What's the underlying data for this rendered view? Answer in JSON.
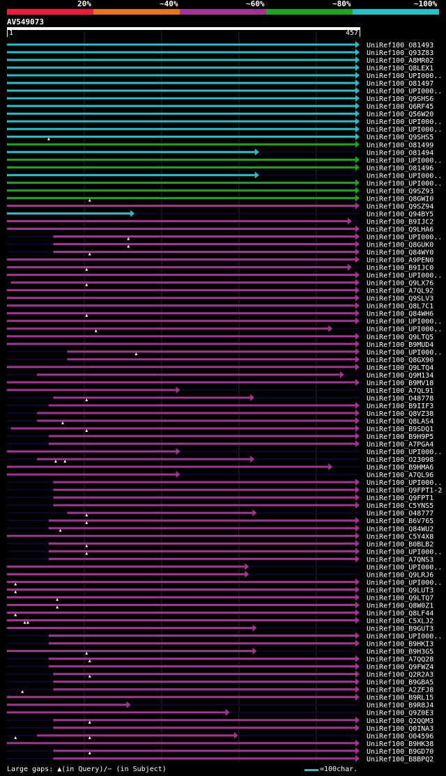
{
  "query": {
    "name": "AV549073",
    "start": "1",
    "end": "457",
    "length": 457
  },
  "legend": {
    "labels": [
      "20%",
      "~40%",
      "~60%",
      "~80%",
      "~100%"
    ],
    "colors": [
      "#ee1c3a",
      "#e8741e",
      "#a53294",
      "#1ea51e",
      "#22c2c8"
    ]
  },
  "footer": {
    "gaps_label": "Large gaps: ▲(in Query)/− (in Subject)",
    "scale_label": "=100char."
  },
  "colors": {
    "line": "#0a0a30",
    "gap": "#050520",
    "tri": "#fffde0"
  },
  "hits": [
    {
      "name": "UniRef100_O81493",
      "s": 1,
      "e": 457,
      "c": 4
    },
    {
      "name": "UniRef100_Q93Z83",
      "s": 1,
      "e": 457,
      "c": 4
    },
    {
      "name": "UniRef100_A8MR02",
      "s": 1,
      "e": 457,
      "c": 4
    },
    {
      "name": "UniRef100_Q8LEX1",
      "s": 1,
      "e": 457,
      "c": 4
    },
    {
      "name": "UniRef100_UPI000..",
      "s": 1,
      "e": 457,
      "c": 4
    },
    {
      "name": "UniRef100_O81497",
      "s": 1,
      "e": 457,
      "c": 4
    },
    {
      "name": "UniRef100_UPI000..",
      "s": 1,
      "e": 457,
      "c": 4
    },
    {
      "name": "UniRef100_Q9SHS6",
      "s": 1,
      "e": 457,
      "c": 4
    },
    {
      "name": "UniRef100_Q6RF45",
      "s": 1,
      "e": 457,
      "c": 4
    },
    {
      "name": "UniRef100_Q56W20",
      "s": 1,
      "e": 457,
      "c": 4
    },
    {
      "name": "UniRef100_UPI000..",
      "s": 1,
      "e": 457,
      "c": 4
    },
    {
      "name": "UniRef100_UPI000..",
      "s": 1,
      "e": 457,
      "c": 4
    },
    {
      "name": "UniRef100_Q9SHS5",
      "s": 1,
      "e": 457,
      "c": 4
    },
    {
      "name": "UniRef100_O81499",
      "s": 1,
      "e": 457,
      "c": 3,
      "tri": [
        55
      ]
    },
    {
      "name": "UniRef100_O81494",
      "s": 1,
      "e": 327,
      "c": 4
    },
    {
      "name": "UniRef100_UPI000..",
      "s": 1,
      "e": 457,
      "c": 3
    },
    {
      "name": "UniRef100_O81496",
      "s": 1,
      "e": 457,
      "c": 3
    },
    {
      "name": "UniRef100_UPI000..",
      "s": 1,
      "e": 327,
      "c": 4
    },
    {
      "name": "UniRef100_UPI000..",
      "s": 1,
      "e": 457,
      "c": 3
    },
    {
      "name": "UniRef100_Q9SZ93",
      "s": 1,
      "e": 457,
      "c": 3
    },
    {
      "name": "UniRef100_Q8GWI0",
      "s": 1,
      "e": 457,
      "c": 3
    },
    {
      "name": "UniRef100_Q9SZ94",
      "s": 1,
      "e": 457,
      "c": 2,
      "tri": [
        108
      ]
    },
    {
      "name": "UniRef100_Q94BY5",
      "s": 1,
      "e": 166,
      "c": 4
    },
    {
      "name": "UniRef100_B9IJC2",
      "s": 1,
      "e": 447,
      "c": 2
    },
    {
      "name": "UniRef100_Q9LHA6",
      "s": 1,
      "e": 457,
      "c": 2
    },
    {
      "name": "UniRef100_UPI000..",
      "s": 61,
      "e": 457,
      "c": 2
    },
    {
      "name": "UniRef100_Q8GUK0",
      "s": 61,
      "e": 457,
      "c": 2,
      "tri": [
        158
      ]
    },
    {
      "name": "UniRef100_Q84WY0",
      "s": 61,
      "e": 457,
      "c": 2,
      "tri": [
        158
      ]
    },
    {
      "name": "UniRef100_A9PEN0",
      "s": 1,
      "e": 457,
      "c": 2,
      "tri": [
        108
      ]
    },
    {
      "name": "UniRef100_B9IJC0",
      "s": 1,
      "e": 447,
      "c": 2
    },
    {
      "name": "UniRef100_UPI000..",
      "s": 1,
      "e": 457,
      "c": 2,
      "tri": [
        104
      ]
    },
    {
      "name": "UniRef100_Q9LX76",
      "s": 6,
      "e": 457,
      "c": 2
    },
    {
      "name": "UniRef100_A7QL92",
      "s": 1,
      "e": 457,
      "c": 2,
      "tri": [
        104
      ]
    },
    {
      "name": "UniRef100_Q9SLV3",
      "s": 1,
      "e": 457,
      "c": 2
    },
    {
      "name": "UniRef100_Q8L7C1",
      "s": 1,
      "e": 457,
      "c": 2
    },
    {
      "name": "UniRef100_Q84WH6",
      "s": 1,
      "e": 457,
      "c": 2
    },
    {
      "name": "UniRef100_UPI000..",
      "s": 1,
      "e": 457,
      "c": 2,
      "tri": [
        104
      ]
    },
    {
      "name": "UniRef100_UPI000..",
      "s": 1,
      "e": 422,
      "c": 2
    },
    {
      "name": "UniRef100_Q9LTQ5",
      "s": 1,
      "e": 457,
      "c": 2,
      "tri": [
        116
      ]
    },
    {
      "name": "UniRef100_B9MUD4",
      "s": 1,
      "e": 457,
      "c": 2
    },
    {
      "name": "UniRef100_UPI000..",
      "s": 79,
      "e": 457,
      "c": 2
    },
    {
      "name": "UniRef100_Q8GX90",
      "s": 79,
      "e": 457,
      "c": 2,
      "tri": [
        168
      ]
    },
    {
      "name": "UniRef100_Q9LTQ4",
      "s": 1,
      "e": 457,
      "c": 2
    },
    {
      "name": "UniRef100_Q9M134",
      "s": 40,
      "e": 437,
      "c": 2
    },
    {
      "name": "UniRef100_B9MV18",
      "s": 1,
      "e": 457,
      "c": 2
    },
    {
      "name": "UniRef100_A7QL91",
      "s": 1,
      "e": 225,
      "c": 2
    },
    {
      "name": "UniRef100_O48778",
      "s": 61,
      "e": 321,
      "c": 2
    },
    {
      "name": "UniRef100_B9IIF3",
      "s": 55,
      "e": 457,
      "c": 2,
      "tri": [
        104
      ]
    },
    {
      "name": "UniRef100_Q8VZ38",
      "s": 40,
      "e": 457,
      "c": 2
    },
    {
      "name": "UniRef100_Q8LAS4",
      "s": 40,
      "e": 457,
      "c": 2
    },
    {
      "name": "UniRef100_B9SDQ1",
      "s": 6,
      "e": 457,
      "c": 2,
      "tri": [
        73
      ]
    },
    {
      "name": "UniRef100_B9H9P5",
      "s": 55,
      "e": 457,
      "c": 2,
      "tri": [
        104
      ]
    },
    {
      "name": "UniRef100_A7PGA4",
      "s": 55,
      "e": 457,
      "c": 2
    },
    {
      "name": "UniRef100_UPI000..",
      "s": 1,
      "e": 225,
      "c": 2
    },
    {
      "name": "UniRef100_O23098",
      "s": 40,
      "e": 321,
      "c": 2
    },
    {
      "name": "UniRef100_B9HMA6",
      "s": 1,
      "e": 422,
      "c": 2,
      "tri": [
        64,
        76
      ]
    },
    {
      "name": "UniRef100_A7QL96",
      "s": 1,
      "e": 225,
      "c": 2
    },
    {
      "name": "UniRef100_UPI000..",
      "s": 61,
      "e": 457,
      "c": 2
    },
    {
      "name": "UniRef100_Q9FPT1-2",
      "s": 61,
      "e": 457,
      "c": 2
    },
    {
      "name": "UniRef100_Q9FPT1",
      "s": 61,
      "e": 457,
      "c": 2
    },
    {
      "name": "UniRef100_C5YNS5",
      "s": 61,
      "e": 457,
      "c": 2
    },
    {
      "name": "UniRef100_O48777",
      "s": 79,
      "e": 324,
      "c": 2
    },
    {
      "name": "UniRef100_B6V765",
      "s": 55,
      "e": 457,
      "c": 2,
      "tri": [
        104
      ]
    },
    {
      "name": "UniRef100_Q84WU2",
      "s": 55,
      "e": 457,
      "c": 2,
      "tri": [
        104
      ]
    },
    {
      "name": "UniRef100_C5Y4X8",
      "s": 1,
      "e": 457,
      "c": 2,
      "tri": [
        70
      ]
    },
    {
      "name": "UniRef100_B0BLB2",
      "s": 55,
      "e": 457,
      "c": 2
    },
    {
      "name": "UniRef100_UPI000..",
      "s": 55,
      "e": 457,
      "c": 2,
      "tri": [
        104
      ]
    },
    {
      "name": "UniRef100_A7QNS3",
      "s": 55,
      "e": 457,
      "c": 2,
      "tri": [
        104
      ]
    },
    {
      "name": "UniRef100_UPI000..",
      "s": 1,
      "e": 314,
      "c": 2
    },
    {
      "name": "UniRef100_Q9LRJ6",
      "s": 1,
      "e": 314,
      "c": 2
    },
    {
      "name": "UniRef100_UPI000..",
      "s": 1,
      "e": 457,
      "c": 2
    },
    {
      "name": "UniRef100_Q9LUT3",
      "s": 1,
      "e": 457,
      "c": 2,
      "tri": [
        12
      ]
    },
    {
      "name": "UniRef100_Q9LTQ7",
      "s": 1,
      "e": 457,
      "c": 2,
      "tri": [
        12
      ]
    },
    {
      "name": "UniRef100_Q8W0Z1",
      "s": 1,
      "e": 457,
      "c": 2,
      "tri": [
        66
      ]
    },
    {
      "name": "UniRef100_Q8LF44",
      "s": 1,
      "e": 457,
      "c": 2,
      "tri": [
        66
      ]
    },
    {
      "name": "UniRef100_C5XLJ2",
      "s": 1,
      "e": 457,
      "c": 2,
      "tri": [
        12
      ]
    },
    {
      "name": "UniRef100_B9GUT3",
      "s": 1,
      "e": 324,
      "c": 2,
      "tri": [
        24,
        28
      ]
    },
    {
      "name": "UniRef100_UPI000..",
      "s": 55,
      "e": 457,
      "c": 2
    },
    {
      "name": "UniRef100_B9HKI3",
      "s": 55,
      "e": 457,
      "c": 2
    },
    {
      "name": "UniRef100_B9H3G5",
      "s": 1,
      "e": 324,
      "c": 2
    },
    {
      "name": "UniRef100_A7QQ28",
      "s": 55,
      "e": 457,
      "c": 2,
      "tri": [
        104
      ]
    },
    {
      "name": "UniRef100_Q9FWZ4",
      "s": 55,
      "e": 457,
      "c": 2,
      "tri": [
        108
      ]
    },
    {
      "name": "UniRef100_Q2R2A3",
      "s": 61,
      "e": 457,
      "c": 2
    },
    {
      "name": "UniRef100_B9GBA5",
      "s": 61,
      "e": 457,
      "c": 2,
      "tri": [
        108
      ]
    },
    {
      "name": "UniRef100_A2ZFJ8",
      "s": 61,
      "e": 457,
      "c": 2
    },
    {
      "name": "UniRef100_B9RL15",
      "s": 1,
      "e": 457,
      "c": 2,
      "tri": [
        21
      ]
    },
    {
      "name": "UniRef100_B9R8J4",
      "s": 1,
      "e": 161,
      "c": 2
    },
    {
      "name": "UniRef100_Q9Z0E3",
      "s": 1,
      "e": 289,
      "c": 2
    },
    {
      "name": "UniRef100_Q2QQM3",
      "s": 61,
      "e": 457,
      "c": 2
    },
    {
      "name": "UniRef100_Q0INA3",
      "s": 61,
      "e": 457,
      "c": 2,
      "tri": [
        108
      ]
    },
    {
      "name": "UniRef100_O04596",
      "s": 40,
      "e": 300,
      "c": 2
    },
    {
      "name": "UniRef100_B9HK38",
      "s": 1,
      "e": 457,
      "c": 2,
      "tri": [
        12,
        108
      ]
    },
    {
      "name": "UniRef100_B9GD70",
      "s": 61,
      "e": 457,
      "c": 2
    },
    {
      "name": "UniRef100_B8BPQ2",
      "s": 61,
      "e": 457,
      "c": 2,
      "tri": [
        108
      ]
    }
  ]
}
